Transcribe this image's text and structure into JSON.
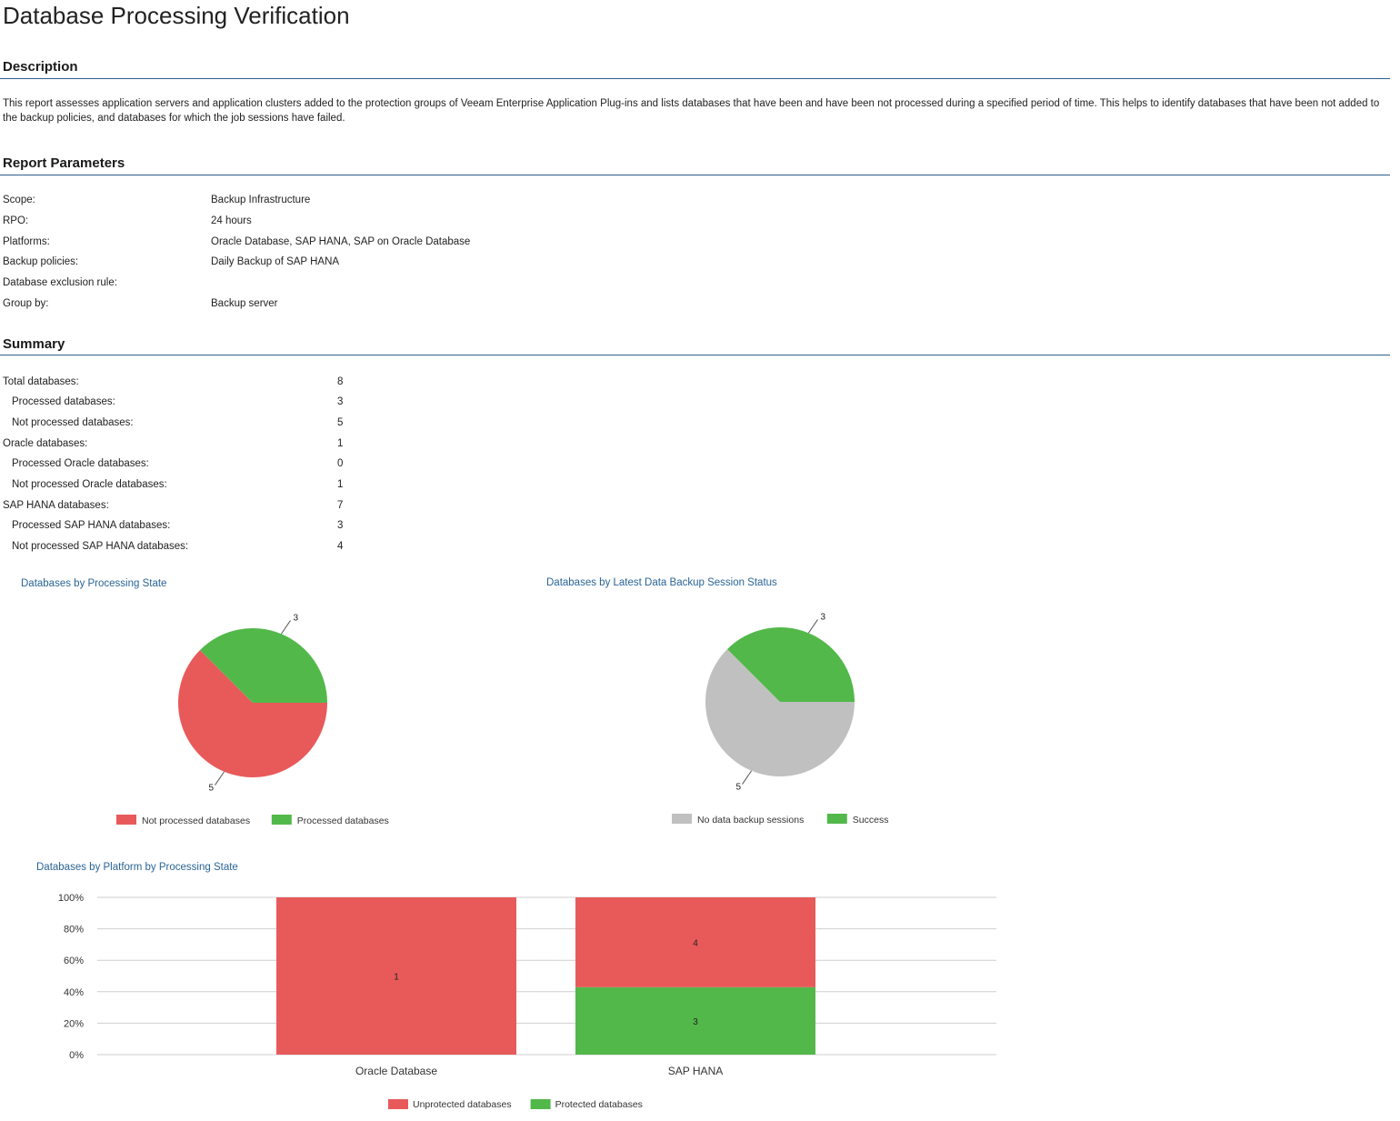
{
  "page": {
    "title": "Database Processing Verification"
  },
  "description": {
    "heading": "Description",
    "text": "This report assesses application servers and application clusters added to the protection groups of Veeam Enterprise Application Plug-ins and lists databases that have been and have been not processed during a specified period of time. This helps to identify databases that have been not added to the backup policies, and databases for which the job sessions have failed."
  },
  "parameters": {
    "heading": "Report Parameters",
    "rows": [
      {
        "label": "Scope:",
        "value": "Backup Infrastructure"
      },
      {
        "label": "RPO:",
        "value": "24 hours"
      },
      {
        "label": "Platforms:",
        "value": "Oracle Database, SAP HANA, SAP on Oracle Database"
      },
      {
        "label": "Backup policies:",
        "value": "Daily Backup of SAP HANA"
      },
      {
        "label": "Database exclusion rule:",
        "value": ""
      },
      {
        "label": "Group by:",
        "value": "Backup server"
      }
    ]
  },
  "summary": {
    "heading": "Summary",
    "rows": [
      {
        "label": "Total databases:",
        "value": "8"
      },
      {
        "label": "Processed databases:",
        "value": "3"
      },
      {
        "label": "Not processed databases:",
        "value": "5"
      },
      {
        "label": "Oracle databases:",
        "value": "1"
      },
      {
        "label": "Processed Oracle databases:",
        "value": "0"
      },
      {
        "label": "Not processed Oracle databases:",
        "value": "1"
      },
      {
        "label": "SAP HANA databases:",
        "value": "7"
      },
      {
        "label": "Processed SAP HANA databases:",
        "value": "3"
      },
      {
        "label": "Not processed SAP HANA databases:",
        "value": "4"
      }
    ]
  },
  "colors": {
    "red": "#e85a5a",
    "green": "#52b84a",
    "gray": "#c0c0c0",
    "title_blue": "#2a6496",
    "rule_blue": "#2f5f8a"
  },
  "chart_data": [
    {
      "type": "pie",
      "title": "Databases by Processing State",
      "slices": [
        {
          "name": "Not processed databases",
          "value": 5,
          "label": "5",
          "color": "#e85a5a"
        },
        {
          "name": "Processed databases",
          "value": 3,
          "label": "3",
          "color": "#52b84a"
        }
      ],
      "legend": "bottom"
    },
    {
      "type": "pie",
      "title": "Databases by Latest Data Backup Session Status",
      "slices": [
        {
          "name": "No data backup sessions",
          "value": 5,
          "label": "5",
          "color": "#c0c0c0"
        },
        {
          "name": "Success",
          "value": 3,
          "label": "3",
          "color": "#52b84a"
        }
      ],
      "legend": "bottom"
    },
    {
      "type": "bar",
      "stacked": "percent",
      "title": "Databases by Platform by Processing State",
      "categories": [
        "Oracle Database",
        "SAP HANA"
      ],
      "series": [
        {
          "name": "Protected databases",
          "values": [
            0,
            3
          ],
          "color": "#52b84a"
        },
        {
          "name": "Unprotected databases",
          "values": [
            1,
            4
          ],
          "color": "#e85a5a"
        }
      ],
      "yticks": [
        "0%",
        "20%",
        "40%",
        "60%",
        "80%",
        "100%"
      ],
      "ylim": [
        0,
        100
      ],
      "grid": true,
      "legend": "bottom"
    }
  ]
}
